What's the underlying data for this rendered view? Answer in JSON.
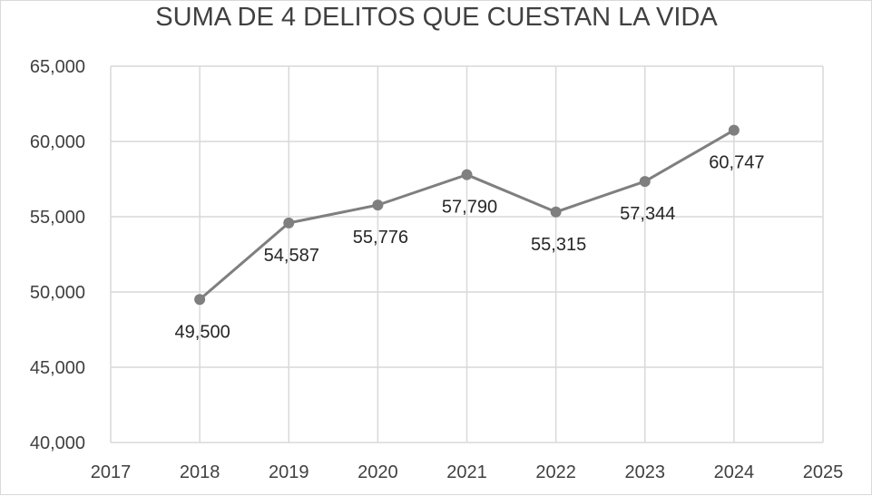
{
  "chart_data": {
    "type": "line",
    "title": "SUMA DE 4 DELITOS QUE CUESTAN LA VIDA",
    "xlabel": "",
    "ylabel": "",
    "x": [
      2018,
      2019,
      2020,
      2021,
      2022,
      2023,
      2024
    ],
    "series": [
      {
        "values": [
          49500,
          54587,
          55776,
          57790,
          55315,
          57344,
          60747
        ],
        "labels": [
          "49,500",
          "54,587",
          "55,776",
          "57,790",
          "55,315",
          "57,344",
          "60,747"
        ],
        "color": "#7f7f7f"
      }
    ],
    "xlim": [
      2017,
      2025
    ],
    "ylim": [
      40000,
      65000
    ],
    "x_ticks": [
      "2017",
      "2018",
      "2019",
      "2020",
      "2021",
      "2022",
      "2023",
      "2024",
      "2025"
    ],
    "y_ticks": [
      "40,000",
      "45,000",
      "50,000",
      "55,000",
      "60,000",
      "65,000"
    ],
    "grid": true,
    "legend": "none",
    "gridline_color": "#d9d9d9"
  }
}
